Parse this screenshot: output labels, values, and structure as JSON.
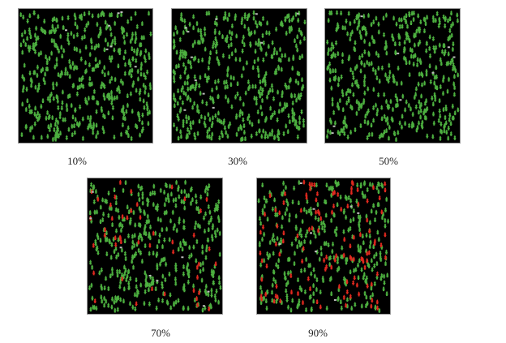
{
  "panels": [
    {
      "caption": "10%"
    },
    {
      "caption": "30%"
    },
    {
      "caption": "50%"
    },
    {
      "caption": "70%"
    },
    {
      "caption": "90%"
    }
  ]
}
